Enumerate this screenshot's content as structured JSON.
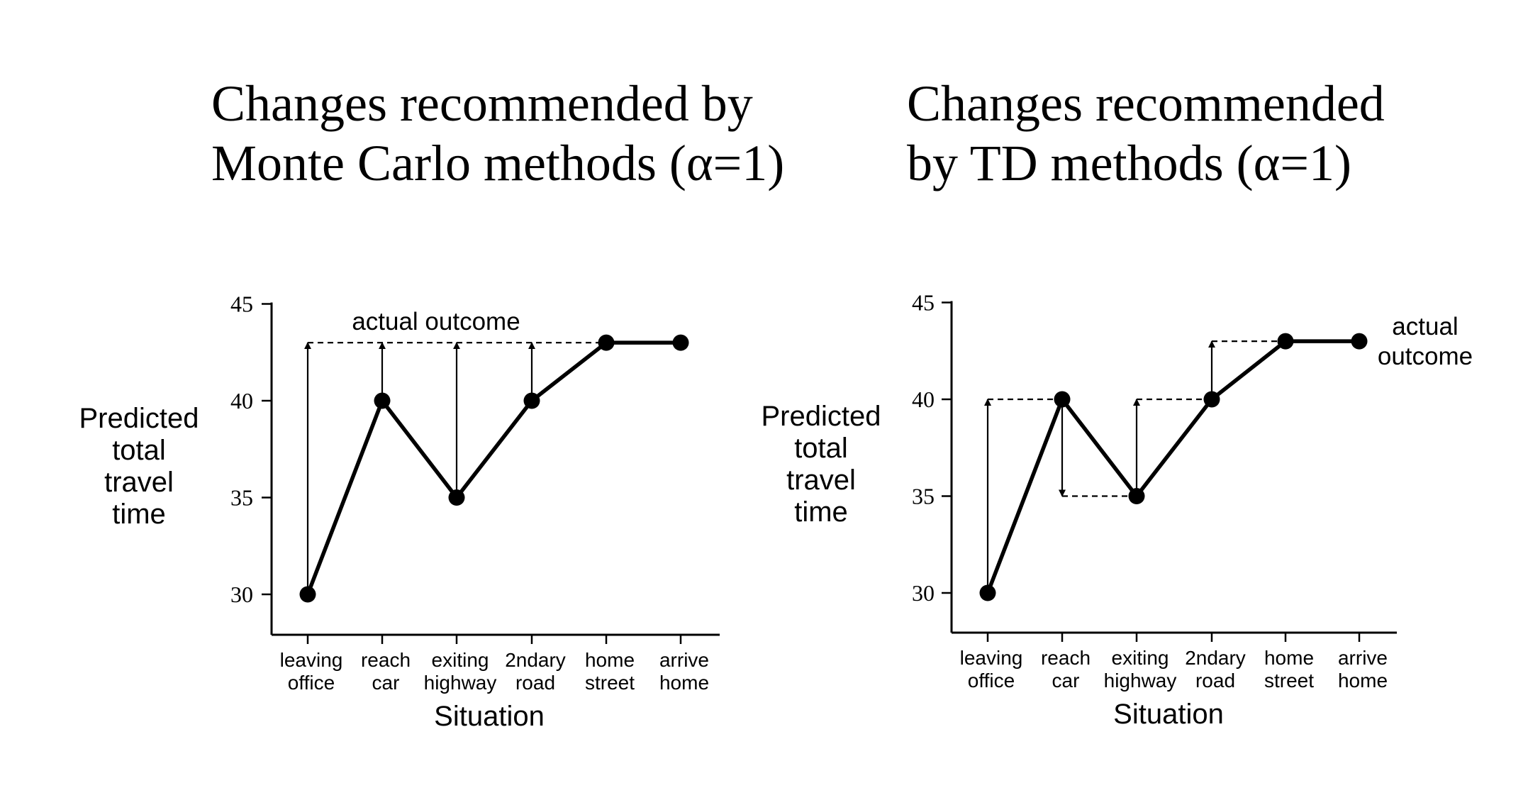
{
  "chart_data": [
    {
      "type": "line",
      "title": [
        "Changes recommended by",
        "Monte Carlo methods (α=1)"
      ],
      "ylabel": [
        "Predicted",
        "total",
        "travel",
        "time"
      ],
      "xlabel": "Situation",
      "categories": [
        [
          "leaving",
          "office"
        ],
        [
          "reach",
          "car"
        ],
        [
          "exiting",
          "highway"
        ],
        [
          "2ndary",
          "road"
        ],
        [
          "home",
          "street"
        ],
        [
          "arrive",
          "home"
        ]
      ],
      "values": [
        30,
        40,
        35,
        40,
        43,
        43
      ],
      "ylim": [
        28,
        45
      ],
      "yticks": [
        "30",
        "35",
        "40",
        "45"
      ],
      "annotation": [
        "actual outcome"
      ],
      "arrows": [
        {
          "index": 0,
          "from": 30,
          "to": 43
        },
        {
          "index": 1,
          "from": 40,
          "to": 43
        },
        {
          "index": 2,
          "from": 35,
          "to": 43
        },
        {
          "index": 3,
          "from": 40,
          "to": 43
        }
      ],
      "dashed": [
        {
          "from_index": 0,
          "to_index": 5,
          "y": 43
        }
      ],
      "grid": false,
      "legend": "none"
    },
    {
      "type": "line",
      "title": [
        "Changes recommended",
        "by TD methods (α=1)"
      ],
      "ylabel": [
        "Predicted",
        "total",
        "travel",
        "time"
      ],
      "xlabel": "Situation",
      "categories": [
        [
          "leaving",
          "office"
        ],
        [
          "reach",
          "car"
        ],
        [
          "exiting",
          "highway"
        ],
        [
          "2ndary",
          "road"
        ],
        [
          "home",
          "street"
        ],
        [
          "arrive",
          "home"
        ]
      ],
      "values": [
        30,
        40,
        35,
        40,
        43,
        43
      ],
      "ylim": [
        28,
        45
      ],
      "yticks": [
        "30",
        "35",
        "40",
        "45"
      ],
      "annotation": [
        "actual",
        "outcome"
      ],
      "arrows": [
        {
          "index": 0,
          "from": 30,
          "to": 40
        },
        {
          "index": 1,
          "from": 40,
          "to": 35
        },
        {
          "index": 2,
          "from": 35,
          "to": 40
        },
        {
          "index": 3,
          "from": 40,
          "to": 43
        }
      ],
      "dashed": [
        {
          "from_index": 0,
          "to_index": 1,
          "y": 40
        },
        {
          "from_index": 1,
          "to_index": 2,
          "y": 35
        },
        {
          "from_index": 2,
          "to_index": 3,
          "y": 40
        },
        {
          "from_index": 3,
          "to_index": 4,
          "y": 43
        }
      ],
      "grid": false,
      "legend": "none"
    }
  ]
}
